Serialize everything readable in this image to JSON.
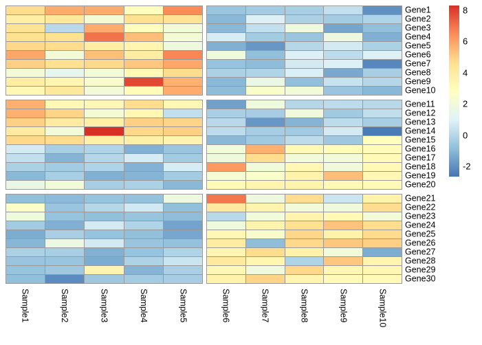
{
  "chart_data": {
    "type": "heatmap",
    "title": "",
    "rows": [
      "Gene1",
      "Gene2",
      "Gene3",
      "Gene4",
      "Gene5",
      "Gene6",
      "Gene7",
      "Gene8",
      "Gene9",
      "Gene10",
      "Gene11",
      "Gene12",
      "Gene13",
      "Gene14",
      "Gene15",
      "Gene16",
      "Gene17",
      "Gene18",
      "Gene19",
      "Gene20",
      "Gene21",
      "Gene22",
      "Gene23",
      "Gene24",
      "Gene25",
      "Gene26",
      "Gene27",
      "Gene28",
      "Gene29",
      "Gene30"
    ],
    "columns": [
      "Sample1",
      "Sample2",
      "Sample3",
      "Sample4",
      "Sample5",
      "Sample6",
      "Sample7",
      "Sample8",
      "Sample9",
      "Sample10"
    ],
    "row_split": [
      10,
      20
    ],
    "col_split": [
      5
    ],
    "values": [
      [
        4.7,
        5.8,
        5.8,
        2.9,
        6.5,
        -0.6,
        -0.4,
        -0.3,
        0.3,
        -2.0
      ],
      [
        3.8,
        4.2,
        2.2,
        4.6,
        4.5,
        -1.0,
        0.9,
        -0.2,
        -0.4,
        -0.1
      ],
      [
        4.5,
        0.1,
        5.8,
        2.9,
        2.1,
        -1.0,
        0.3,
        1.9,
        -1.5,
        -0.8
      ],
      [
        4.6,
        4.6,
        7.0,
        5.4,
        2.1,
        0.8,
        -0.4,
        -0.6,
        1.8,
        -1.2
      ],
      [
        4.8,
        4.7,
        3.9,
        3.4,
        1.8,
        -1.2,
        -1.8,
        0.0,
        0.7,
        -0.2
      ],
      [
        5.9,
        2.1,
        5.4,
        3.9,
        6.6,
        1.9,
        -0.8,
        0.9,
        0.2,
        0.9
      ],
      [
        5.0,
        4.6,
        4.8,
        5.2,
        5.9,
        -0.7,
        -0.9,
        0.7,
        0.9,
        -2.2
      ],
      [
        2.1,
        1.4,
        2.1,
        3.2,
        4.7,
        -0.2,
        -0.1,
        0.85,
        -1.4,
        -0.3
      ],
      [
        3.9,
        3.4,
        2.4,
        7.8,
        5.7,
        -1.0,
        1.6,
        -0.8,
        0.4,
        0.0
      ],
      [
        3.3,
        4.2,
        2.1,
        3.0,
        5.8,
        -0.9,
        2.5,
        2.1,
        -0.6,
        -1.0
      ],
      [
        5.7,
        3.2,
        3.3,
        4.7,
        3.3,
        -1.6,
        1.9,
        0.0,
        0.2,
        0.1
      ],
      [
        5.7,
        4.9,
        2.2,
        3.3,
        0.3,
        -0.25,
        -0.35,
        1.9,
        -0.45,
        0.25
      ],
      [
        5.0,
        4.0,
        3.7,
        5.0,
        4.9,
        0.1,
        -1.8,
        -1.1,
        0.2,
        -0.3
      ],
      [
        4.0,
        2.0,
        8.3,
        4.8,
        5.0,
        0.2,
        -0.35,
        -0.45,
        0.7,
        -2.5
      ],
      [
        4.8,
        4.7,
        3.7,
        3.7,
        3.4,
        -1.0,
        -0.45,
        0.2,
        -0.5,
        2.9
      ],
      [
        0.7,
        -0.3,
        -0.1,
        -1.2,
        -0.6,
        2.0,
        5.7,
        3.2,
        3.0,
        3.0
      ],
      [
        0.3,
        -1.1,
        0.0,
        0.75,
        -0.4,
        1.9,
        4.7,
        2.0,
        2.0,
        3.1
      ],
      [
        -0.2,
        -0.4,
        -0.1,
        -1.15,
        0.8,
        6.2,
        2.0,
        3.3,
        1.95,
        3.2
      ],
      [
        -1.0,
        -0.3,
        -1.2,
        -1.1,
        -0.4,
        2.15,
        2.5,
        3.6,
        5.4,
        3.3
      ],
      [
        1.6,
        2.0,
        -0.3,
        -0.2,
        -1.0,
        3.1,
        3.4,
        3.5,
        3.2,
        3.1
      ],
      [
        -0.8,
        -0.95,
        -0.7,
        -0.75,
        1.8,
        6.9,
        1.8,
        4.7,
        0.5,
        3.6
      ],
      [
        2.6,
        -0.6,
        0.0,
        0.65,
        -0.8,
        4.1,
        3.5,
        2.0,
        1.9,
        4.7
      ],
      [
        1.9,
        -0.7,
        -0.8,
        -0.65,
        -0.85,
        0.1,
        2.0,
        3.5,
        3.2,
        2.05
      ],
      [
        -0.4,
        -1.2,
        0.7,
        -0.1,
        -1.55,
        1.85,
        3.5,
        4.6,
        5.3,
        4.7
      ],
      [
        -1.3,
        -0.25,
        -0.7,
        -0.8,
        -1.45,
        3.3,
        2.4,
        4.85,
        3.6,
        4.75
      ],
      [
        -1.05,
        1.7,
        0.7,
        -0.6,
        -0.75,
        3.95,
        -0.85,
        4.8,
        5.2,
        5.0
      ],
      [
        -0.2,
        -0.3,
        -1.2,
        -0.7,
        -0.1,
        3.4,
        4.7,
        3.6,
        2.0,
        -1.3
      ],
      [
        -0.6,
        -0.6,
        -1.3,
        -0.15,
        0.5,
        4.05,
        3.35,
        -0.1,
        5.2,
        3.4
      ],
      [
        -0.7,
        -0.5,
        3.4,
        -1.1,
        -0.25,
        3.25,
        1.9,
        4.8,
        3.3,
        3.3
      ],
      [
        -0.8,
        -2.1,
        -0.5,
        -0.4,
        -0.35,
        3.6,
        4.9,
        3.4,
        3.1,
        3.1
      ]
    ],
    "colormap": {
      "name": "RdYlBu-reversed",
      "stops": [
        "#4575b4",
        "#91bfdb",
        "#e0f3f8",
        "#ffffbf",
        "#fee090",
        "#fc8d59",
        "#d73027"
      ],
      "domain": [
        -2.65,
        8.3
      ]
    },
    "legend": {
      "ticks": [
        "8",
        "6",
        "4",
        "2",
        "0",
        "-2"
      ],
      "tick_values": [
        8,
        6,
        4,
        2,
        0,
        -2
      ],
      "position": "right"
    },
    "grid": {
      "cell_border_color": "#999999",
      "background": "#ffffff"
    }
  }
}
